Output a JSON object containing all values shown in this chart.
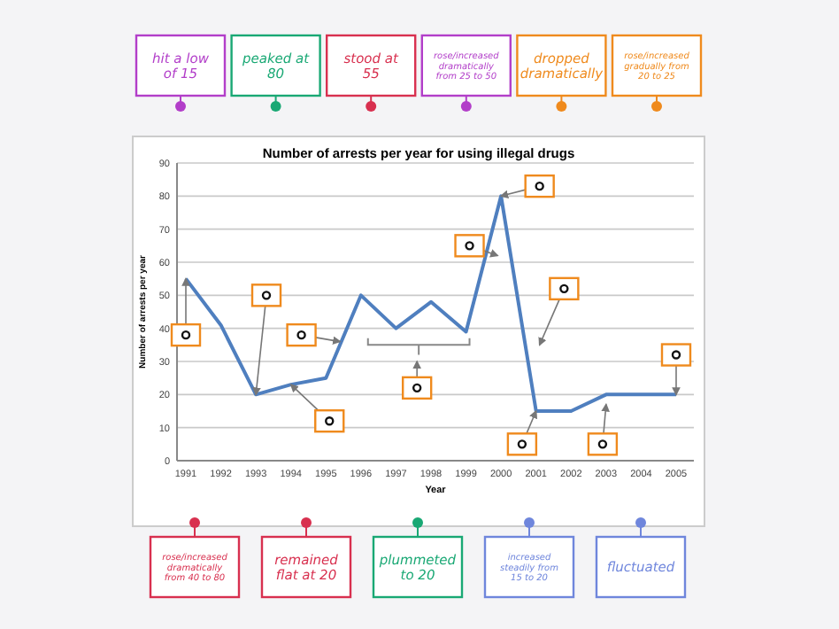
{
  "chart_data": {
    "type": "line",
    "title": "Number of arrests per year for using illegal drugs",
    "xlabel": "Year",
    "ylabel": "Number of arrests per year",
    "categories": [
      "1991",
      "1992",
      "1993",
      "1994",
      "1995",
      "1996",
      "1997",
      "1998",
      "1999",
      "2000",
      "2001",
      "2002",
      "2003",
      "2004",
      "2005"
    ],
    "series": [
      {
        "color": "#4f7fbf",
        "values": [
          55,
          41,
          20,
          23,
          25,
          50,
          40,
          48,
          39,
          80,
          15,
          15,
          20,
          20,
          20
        ]
      }
    ],
    "ylim": [
      0,
      90
    ],
    "yticks": [
      0,
      10,
      20,
      30,
      40,
      50,
      60,
      70,
      80,
      90
    ],
    "grid": "y",
    "marker": "none",
    "line_style": "solid",
    "annotations": [
      "hit a low of 15",
      "peaked at 80",
      "stood at 55",
      "rose/increased dramatically from 25 to 50",
      "dropped dramatically",
      "rose/increased gradually from 20 to 25",
      "rose/increased dramatically from 40 to 80",
      "remained flat at 20",
      "plummeted to 20",
      "increased steadily from 15 to 20",
      "fluctuated"
    ]
  }
}
